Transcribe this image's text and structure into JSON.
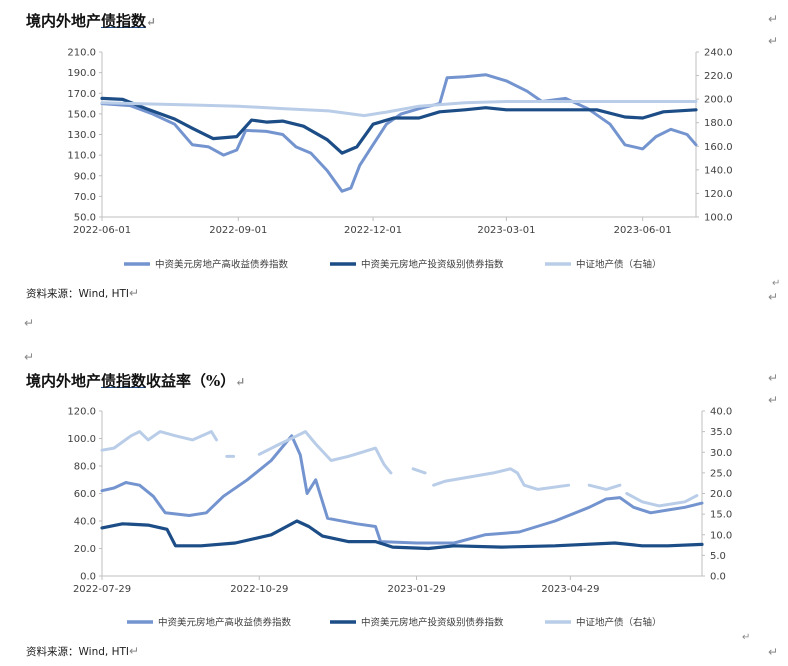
{
  "chart1": {
    "title_plain": "境内外地产",
    "title_underlined": "债指数",
    "return_mark": "↵",
    "source": "资料来源：Wind, HTI"
  },
  "chart2": {
    "title_plain": "境内外地产",
    "title_underlined": "债指数",
    "title_suffix": "收益率（%）",
    "return_mark": "↵",
    "source": "资料来源：Wind, HTI"
  },
  "colors": {
    "high_yield": "#7494cf",
    "investment_grade": "#1c4d86",
    "csi_property": "#b9cde8"
  },
  "chart_data": [
    {
      "type": "line",
      "x_ticks": [
        "2022-06-01",
        "2022-09-01",
        "2022-12-01",
        "2023-03-01",
        "2023-06-01"
      ],
      "x_range": [
        "2022-06-01",
        "2023-07-07"
      ],
      "y_left_ticks": [
        "50.0",
        "70.0",
        "90.0",
        "110.0",
        "130.0",
        "150.0",
        "170.0",
        "190.0",
        "210.0"
      ],
      "y_right_ticks": [
        "100.0",
        "120.0",
        "140.0",
        "160.0",
        "180.0",
        "200.0",
        "220.0",
        "240.0"
      ],
      "ylim_left": [
        50,
        210
      ],
      "ylim_right": [
        100,
        240
      ],
      "grid": false,
      "legend_position": "bottom",
      "series": [
        {
          "name": "中资美元房地产高收益债券指数",
          "axis": "left",
          "color": "#7494cf",
          "points": [
            [
              "2022-06-01",
              160
            ],
            [
              "2022-06-20",
              158
            ],
            [
              "2022-07-05",
              150
            ],
            [
              "2022-07-20",
              140
            ],
            [
              "2022-08-01",
              120
            ],
            [
              "2022-08-12",
              118
            ],
            [
              "2022-08-22",
              110
            ],
            [
              "2022-08-31",
              115
            ],
            [
              "2022-09-06",
              134
            ],
            [
              "2022-09-20",
              133
            ],
            [
              "2022-10-01",
              130
            ],
            [
              "2022-10-10",
              118
            ],
            [
              "2022-10-20",
              112
            ],
            [
              "2022-10-31",
              95
            ],
            [
              "2022-11-10",
              75
            ],
            [
              "2022-11-16",
              78
            ],
            [
              "2022-11-22",
              100
            ],
            [
              "2022-11-30",
              118
            ],
            [
              "2022-12-10",
              140
            ],
            [
              "2022-12-20",
              150
            ],
            [
              "2023-01-01",
              155
            ],
            [
              "2023-01-15",
              160
            ],
            [
              "2023-01-20",
              185
            ],
            [
              "2023-02-01",
              186
            ],
            [
              "2023-02-15",
              188
            ],
            [
              "2023-03-01",
              182
            ],
            [
              "2023-03-15",
              172
            ],
            [
              "2023-03-25",
              162
            ],
            [
              "2023-04-10",
              165
            ],
            [
              "2023-04-25",
              155
            ],
            [
              "2023-05-10",
              140
            ],
            [
              "2023-05-20",
              120
            ],
            [
              "2023-06-01",
              116
            ],
            [
              "2023-06-10",
              128
            ],
            [
              "2023-06-20",
              135
            ],
            [
              "2023-07-01",
              130
            ],
            [
              "2023-07-07",
              120
            ]
          ]
        },
        {
          "name": "中资美元房地产投资级别债券指数",
          "axis": "left",
          "color": "#1c4d86",
          "points": [
            [
              "2022-06-01",
              165
            ],
            [
              "2022-06-15",
              164
            ],
            [
              "2022-07-01",
              155
            ],
            [
              "2022-07-20",
              145
            ],
            [
              "2022-08-01",
              136
            ],
            [
              "2022-08-15",
              126
            ],
            [
              "2022-08-31",
              128
            ],
            [
              "2022-09-10",
              144
            ],
            [
              "2022-09-20",
              142
            ],
            [
              "2022-10-01",
              143
            ],
            [
              "2022-10-15",
              138
            ],
            [
              "2022-10-31",
              125
            ],
            [
              "2022-11-10",
              112
            ],
            [
              "2022-11-20",
              118
            ],
            [
              "2022-12-01",
              140
            ],
            [
              "2022-12-15",
              146
            ],
            [
              "2023-01-01",
              146
            ],
            [
              "2023-01-15",
              152
            ],
            [
              "2023-02-01",
              154
            ],
            [
              "2023-02-15",
              156
            ],
            [
              "2023-03-01",
              154
            ],
            [
              "2023-04-01",
              154
            ],
            [
              "2023-05-01",
              154
            ],
            [
              "2023-05-20",
              147
            ],
            [
              "2023-06-01",
              146
            ],
            [
              "2023-06-15",
              152
            ],
            [
              "2023-07-07",
              154
            ]
          ]
        },
        {
          "name": "中证地产债（右轴）",
          "axis": "right",
          "color": "#b9cde8",
          "points": [
            [
              "2022-06-01",
              197
            ],
            [
              "2022-07-01",
              196
            ],
            [
              "2022-08-01",
              195
            ],
            [
              "2022-09-01",
              194
            ],
            [
              "2022-10-01",
              192
            ],
            [
              "2022-11-01",
              190
            ],
            [
              "2022-11-25",
              186
            ],
            [
              "2022-12-10",
              189
            ],
            [
              "2023-01-01",
              194
            ],
            [
              "2023-02-01",
              197
            ],
            [
              "2023-03-01",
              198
            ],
            [
              "2023-04-01",
              198
            ],
            [
              "2023-05-01",
              198
            ],
            [
              "2023-06-01",
              198
            ],
            [
              "2023-07-07",
              198
            ]
          ]
        }
      ]
    },
    {
      "type": "line",
      "x_ticks": [
        "2022-07-29",
        "2022-10-29",
        "2023-01-29",
        "2023-04-29"
      ],
      "x_range": [
        "2022-07-29",
        "2023-07-15"
      ],
      "y_left_ticks": [
        "0.0",
        "20.0",
        "40.0",
        "60.0",
        "80.0",
        "100.0",
        "120.0"
      ],
      "y_right_ticks": [
        "0.0",
        "5.0",
        "10.0",
        "15.0",
        "20.0",
        "25.0",
        "30.0",
        "35.0",
        "40.0"
      ],
      "ylim_left": [
        0,
        120
      ],
      "ylim_right": [
        0,
        40
      ],
      "grid": false,
      "legend_position": "bottom",
      "series": [
        {
          "name": "中资美元房地产高收益债券指数",
          "axis": "left",
          "color": "#7494cf",
          "points": [
            [
              "2022-07-29",
              62
            ],
            [
              "2022-08-05",
              64
            ],
            [
              "2022-08-12",
              68
            ],
            [
              "2022-08-20",
              66
            ],
            [
              "2022-08-28",
              58
            ],
            [
              "2022-09-04",
              46
            ],
            [
              "2022-09-18",
              44
            ],
            [
              "2022-09-28",
              46
            ],
            [
              "2022-10-08",
              58
            ],
            [
              "2022-10-22",
              70
            ],
            [
              "2022-11-05",
              84
            ],
            [
              "2022-11-17",
              102
            ],
            [
              "2022-11-22",
              88
            ],
            [
              "2022-11-26",
              60
            ],
            [
              "2022-12-01",
              70
            ],
            [
              "2022-12-08",
              42
            ],
            [
              "2022-12-25",
              38
            ],
            [
              "2023-01-05",
              36
            ],
            [
              "2023-01-08",
              25
            ],
            [
              "2023-01-29",
              24
            ],
            [
              "2023-02-20",
              24
            ],
            [
              "2023-03-10",
              30
            ],
            [
              "2023-03-30",
              32
            ],
            [
              "2023-04-20",
              40
            ],
            [
              "2023-05-10",
              50
            ],
            [
              "2023-05-20",
              56
            ],
            [
              "2023-05-28",
              57
            ],
            [
              "2023-06-05",
              50
            ],
            [
              "2023-06-15",
              46
            ],
            [
              "2023-06-25",
              48
            ],
            [
              "2023-07-05",
              50
            ],
            [
              "2023-07-15",
              53
            ]
          ]
        },
        {
          "name": "中资美元房地产投资级别债券指数",
          "axis": "left",
          "color": "#1c4d86",
          "points": [
            [
              "2022-07-29",
              35
            ],
            [
              "2022-08-10",
              38
            ],
            [
              "2022-08-25",
              37
            ],
            [
              "2022-09-05",
              34
            ],
            [
              "2022-09-10",
              22
            ],
            [
              "2022-09-25",
              22
            ],
            [
              "2022-10-15",
              24
            ],
            [
              "2022-11-05",
              30
            ],
            [
              "2022-11-20",
              40
            ],
            [
              "2022-11-27",
              36
            ],
            [
              "2022-12-05",
              29
            ],
            [
              "2022-12-20",
              25
            ],
            [
              "2023-01-05",
              25
            ],
            [
              "2023-01-15",
              21
            ],
            [
              "2023-02-05",
              20
            ],
            [
              "2023-02-20",
              22
            ],
            [
              "2023-03-20",
              21
            ],
            [
              "2023-04-20",
              22
            ],
            [
              "2023-05-25",
              24
            ],
            [
              "2023-06-10",
              22
            ],
            [
              "2023-06-25",
              22
            ],
            [
              "2023-07-15",
              23
            ]
          ]
        },
        {
          "name": "中证地产债（右轴）",
          "axis": "right",
          "color": "#b9cde8",
          "segments": [
            [
              [
                "2022-07-29",
                30.5
              ],
              [
                "2022-08-05",
                31
              ],
              [
                "2022-08-15",
                34
              ],
              [
                "2022-08-20",
                35
              ],
              [
                "2022-08-25",
                33
              ],
              [
                "2022-09-01",
                35
              ],
              [
                "2022-09-10",
                34
              ],
              [
                "2022-09-20",
                33
              ],
              [
                "2022-10-01",
                35
              ],
              [
                "2022-10-04",
                33
              ]
            ],
            [
              [
                "2022-10-10",
                29
              ],
              [
                "2022-10-14",
                29
              ]
            ],
            [
              [
                "2022-10-29",
                29.5
              ],
              [
                "2022-11-10",
                32
              ],
              [
                "2022-11-20",
                34
              ],
              [
                "2022-11-25",
                35
              ],
              [
                "2022-12-01",
                32
              ],
              [
                "2022-12-10",
                28
              ],
              [
                "2022-12-20",
                29
              ],
              [
                "2022-12-28",
                30
              ],
              [
                "2023-01-05",
                31
              ],
              [
                "2023-01-10",
                27
              ],
              [
                "2023-01-14",
                25
              ]
            ],
            [
              [
                "2023-01-27",
                26
              ],
              [
                "2023-02-03",
                25
              ]
            ],
            [
              [
                "2023-02-08",
                22
              ],
              [
                "2023-02-15",
                23
              ],
              [
                "2023-03-01",
                24
              ],
              [
                "2023-03-15",
                25
              ],
              [
                "2023-03-25",
                26
              ],
              [
                "2023-03-29",
                25
              ],
              [
                "2023-04-02",
                22
              ],
              [
                "2023-04-10",
                21
              ],
              [
                "2023-04-28",
                22
              ]
            ],
            [
              [
                "2023-05-10",
                22
              ],
              [
                "2023-05-20",
                21
              ],
              [
                "2023-05-28",
                22
              ]
            ],
            [
              [
                "2023-06-01",
                20
              ],
              [
                "2023-06-10",
                18
              ],
              [
                "2023-06-20",
                17
              ],
              [
                "2023-07-05",
                18
              ],
              [
                "2023-07-12",
                19.5
              ]
            ]
          ]
        }
      ]
    }
  ]
}
